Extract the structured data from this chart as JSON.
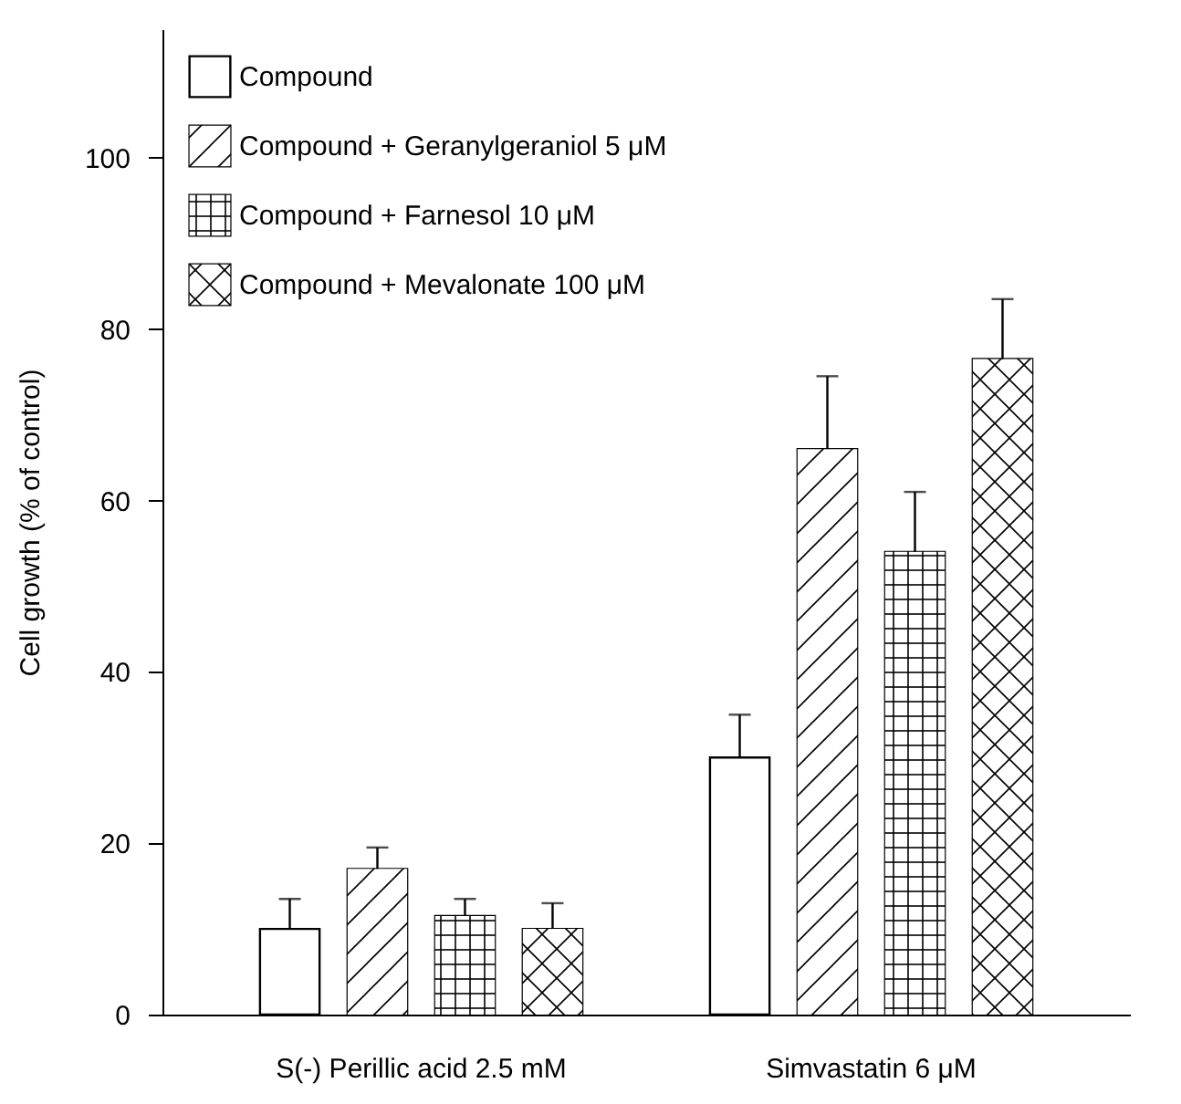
{
  "chart_data": {
    "type": "bar",
    "ylabel": "Cell growth (% of control)",
    "categories": [
      "S(-) Perillic acid 2.5 mM",
      "Simvastatin 6 μM"
    ],
    "series": [
      {
        "name": "Compound",
        "color": "#ffffff",
        "values": [
          10,
          30
        ],
        "errors": [
          [
            10,
            13.5
          ],
          [
            30,
            35
          ]
        ]
      },
      {
        "name": "Compound + Geranylgeraniol 5 μM",
        "color": "#ffffff",
        "values": [
          17,
          66
        ],
        "errors": [
          [
            17,
            19.5
          ],
          [
            66,
            74.5
          ]
        ]
      },
      {
        "name": "Compound + Farnesol 10 μM",
        "color": "#ffffff",
        "values": [
          11.5,
          54
        ],
        "errors": [
          [
            11.5,
            13.5
          ],
          [
            54,
            61
          ]
        ]
      },
      {
        "name": "Compound + Mevalonate 100 μM",
        "color": "#ffffff",
        "values": [
          10,
          76.5
        ],
        "errors": [
          [
            10,
            13
          ],
          [
            76.5,
            83.5
          ]
        ]
      }
    ],
    "ylim": [
      0,
      115
    ],
    "yticks": [
      0,
      20,
      40,
      60,
      80,
      100
    ],
    "grid": false,
    "legend": "top left"
  }
}
